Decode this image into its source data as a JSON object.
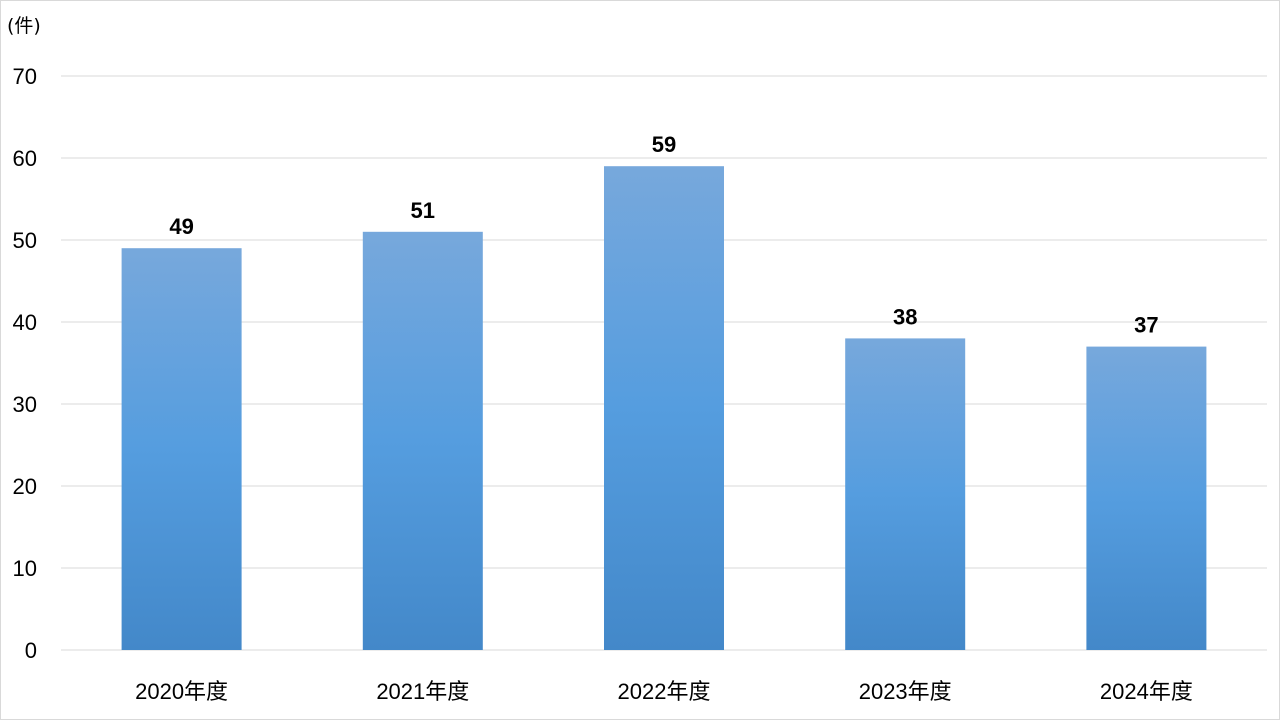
{
  "chart_data": {
    "type": "bar",
    "unit_label": "(件)",
    "categories": [
      "2020年度",
      "2021年度",
      "2022年度",
      "2023年度",
      "2024年度"
    ],
    "values": [
      49,
      51,
      59,
      38,
      37
    ],
    "ylim": [
      0,
      70
    ],
    "yticks": [
      0,
      10,
      20,
      30,
      40,
      50,
      60,
      70
    ],
    "grid": true,
    "legend": "none",
    "colors": {
      "bar_top": "#77a8dc",
      "bar_mid": "#559ddf",
      "bar_bottom": "#4388c9",
      "grid": "#d9d9d9"
    }
  }
}
